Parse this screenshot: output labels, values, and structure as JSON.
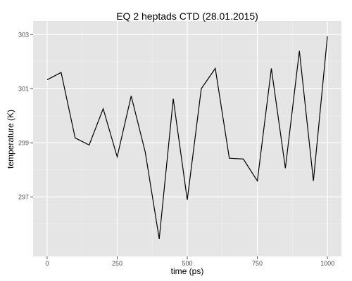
{
  "chart_data": {
    "type": "line",
    "title": "EQ 2 heptads CTD (28.01.2015)",
    "xlabel": "time (ps)",
    "ylabel": "temperature (K)",
    "xlim": [
      -50,
      1050
    ],
    "ylim": [
      294.8,
      303.5
    ],
    "x_ticks": [
      0,
      250,
      500,
      750,
      1000
    ],
    "x_tick_labels": [
      "0",
      "250",
      "500",
      "750",
      "1000"
    ],
    "y_ticks": [
      297,
      299,
      301,
      303
    ],
    "y_tick_labels": [
      "297",
      "299",
      "301",
      "303"
    ],
    "grid": true,
    "legend": "none",
    "series": [
      {
        "x": [
          0,
          50,
          100,
          150,
          200,
          250,
          300,
          350,
          400,
          450,
          500,
          550,
          600,
          650,
          700,
          750,
          800,
          850,
          900,
          950,
          1000
        ],
        "values": [
          301.33,
          301.6,
          299.18,
          298.92,
          300.26,
          298.48,
          300.73,
          298.66,
          295.45,
          300.63,
          296.89,
          301.0,
          301.75,
          298.43,
          298.4,
          297.59,
          301.75,
          298.06,
          302.4,
          297.59,
          302.94
        ]
      }
    ]
  },
  "colors": {
    "panel_background": "#e5e5e5",
    "grid_major": "#ffffff",
    "grid_minor": "#f0f0f0",
    "line": "#000000",
    "tick_text": "#4d4d4d"
  }
}
